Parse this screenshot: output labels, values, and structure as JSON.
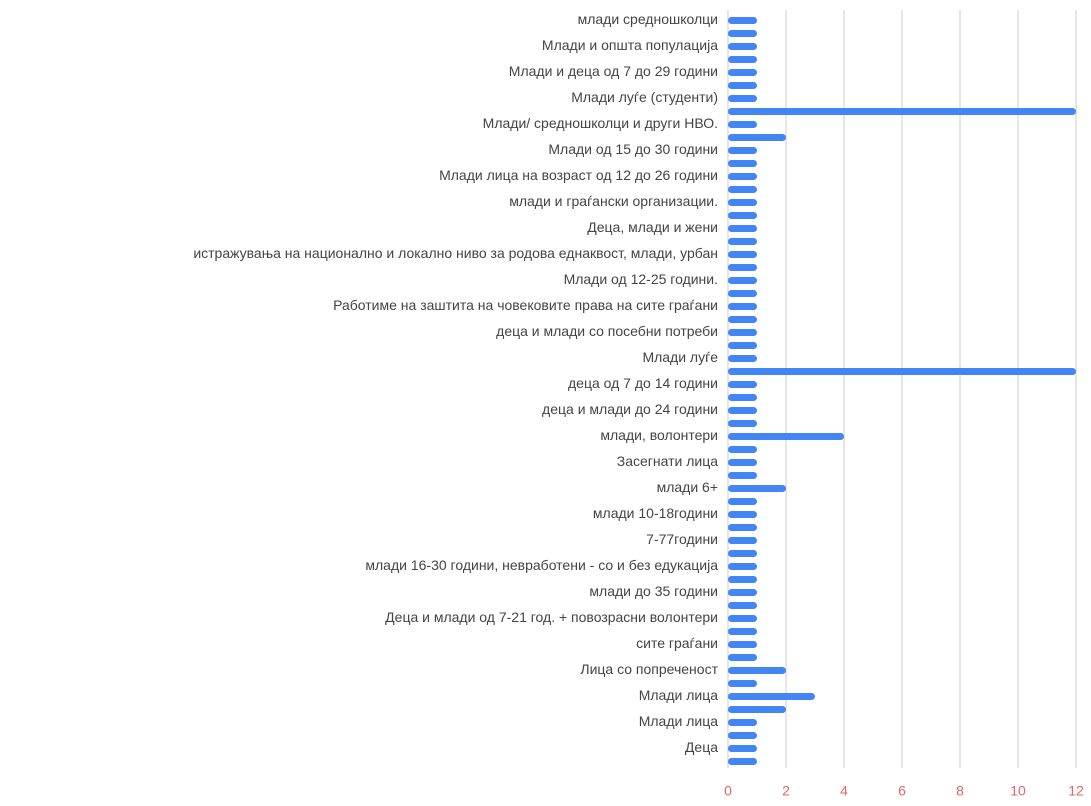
{
  "chart_data": {
    "type": "hbar",
    "categories": [
      "млади средношколци",
      null,
      "Млади и општа популација",
      null,
      "Млади и деца од 7 до 29 години",
      null,
      "Млади луѓе (студенти)",
      null,
      "Млади/ средношколци и други НВО.",
      null,
      "Млади од 15 до 30 години",
      null,
      "Млади лица на возраст од 12 до 26 години",
      null,
      "млади и граѓански организации.",
      null,
      "Деца, млади и жени",
      null,
      "истражувања на национално и локално ниво за родова еднаквост, млади, урбан",
      null,
      "Млади од 12-25 години.",
      null,
      "Работиме на заштита на човековите права на сите граѓани",
      null,
      "деца и млади со посебни потреби",
      null,
      "Млади луѓе",
      null,
      "деца од 7 до 14 години",
      null,
      "деца и млади до 24 години",
      null,
      "млади, волонтери",
      null,
      "Засегнати лица",
      null,
      "млади 6+",
      null,
      "млади 10-18години",
      null,
      "7-77години",
      null,
      "млади 16-30 години, невработени - со и без едукација",
      null,
      "млади до 35 години",
      null,
      "Деца и млади од 7-21 год. + повозрасни волонтери",
      null,
      "сите граѓани",
      null,
      "Лица со попреченост",
      null,
      "Млади лица",
      null,
      "Млади лица",
      null,
      "Деца",
      null
    ],
    "values": [
      1,
      1,
      1,
      1,
      1,
      1,
      1,
      12,
      1,
      2,
      1,
      1,
      1,
      1,
      1,
      1,
      1,
      1,
      1,
      1,
      1,
      1,
      1,
      1,
      1,
      1,
      1,
      12,
      1,
      1,
      1,
      1,
      4,
      1,
      1,
      1,
      2,
      1,
      1,
      1,
      1,
      1,
      1,
      1,
      1,
      1,
      1,
      1,
      1,
      1,
      2,
      1,
      3,
      2,
      1,
      1,
      1,
      1
    ],
    "color": "#4285f4",
    "tick_color": "#e06666",
    "xlim": [
      0,
      12
    ],
    "xticks": [
      0,
      2,
      4,
      6,
      8,
      10,
      12
    ],
    "grid": true
  }
}
